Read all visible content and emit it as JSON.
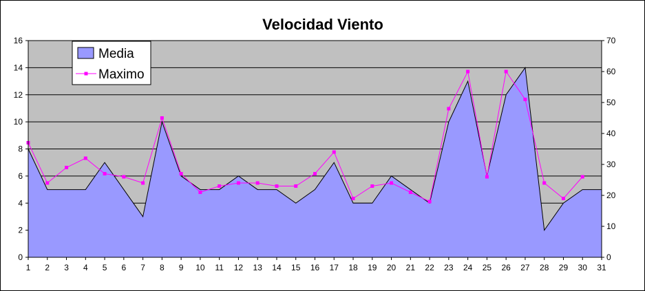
{
  "chart_data": {
    "type": "area",
    "title": "Velocidad Viento",
    "categories": [
      "1",
      "2",
      "3",
      "4",
      "5",
      "6",
      "7",
      "8",
      "9",
      "10",
      "11",
      "12",
      "13",
      "14",
      "15",
      "16",
      "17",
      "18",
      "19",
      "20",
      "21",
      "22",
      "23",
      "24",
      "25",
      "26",
      "27",
      "28",
      "29",
      "30",
      "31"
    ],
    "series": [
      {
        "name": "Media",
        "type": "area",
        "axis": "left",
        "color": "#9999ff",
        "values": [
          8,
          5,
          5,
          5,
          7,
          5,
          3,
          10,
          6,
          5,
          5,
          6,
          5,
          5,
          4,
          5,
          7,
          4,
          4,
          6,
          5,
          4,
          10,
          13,
          6,
          12,
          14,
          2,
          4,
          5,
          5
        ]
      },
      {
        "name": "Maximo",
        "type": "line",
        "axis": "right",
        "color": "#ff00ff",
        "values": [
          37,
          24,
          29,
          32,
          27,
          26,
          24,
          45,
          27,
          21,
          23,
          24,
          24,
          23,
          23,
          27,
          34,
          19,
          23,
          24,
          21,
          18,
          48,
          60,
          26,
          60,
          51,
          24,
          19,
          26,
          null
        ]
      }
    ],
    "y_left": {
      "min": 0,
      "max": 16,
      "step": 2,
      "ticks": [
        "0",
        "2",
        "4",
        "6",
        "8",
        "10",
        "12",
        "14",
        "16"
      ]
    },
    "y_right": {
      "min": 0,
      "max": 70,
      "step": 10,
      "ticks": [
        "0",
        "10",
        "20",
        "30",
        "40",
        "50",
        "60",
        "70"
      ]
    },
    "plot_background": "#c0c0c0",
    "grid": true,
    "legend": {
      "position": "top-left",
      "entries": [
        "Media",
        "Maximo"
      ]
    }
  }
}
